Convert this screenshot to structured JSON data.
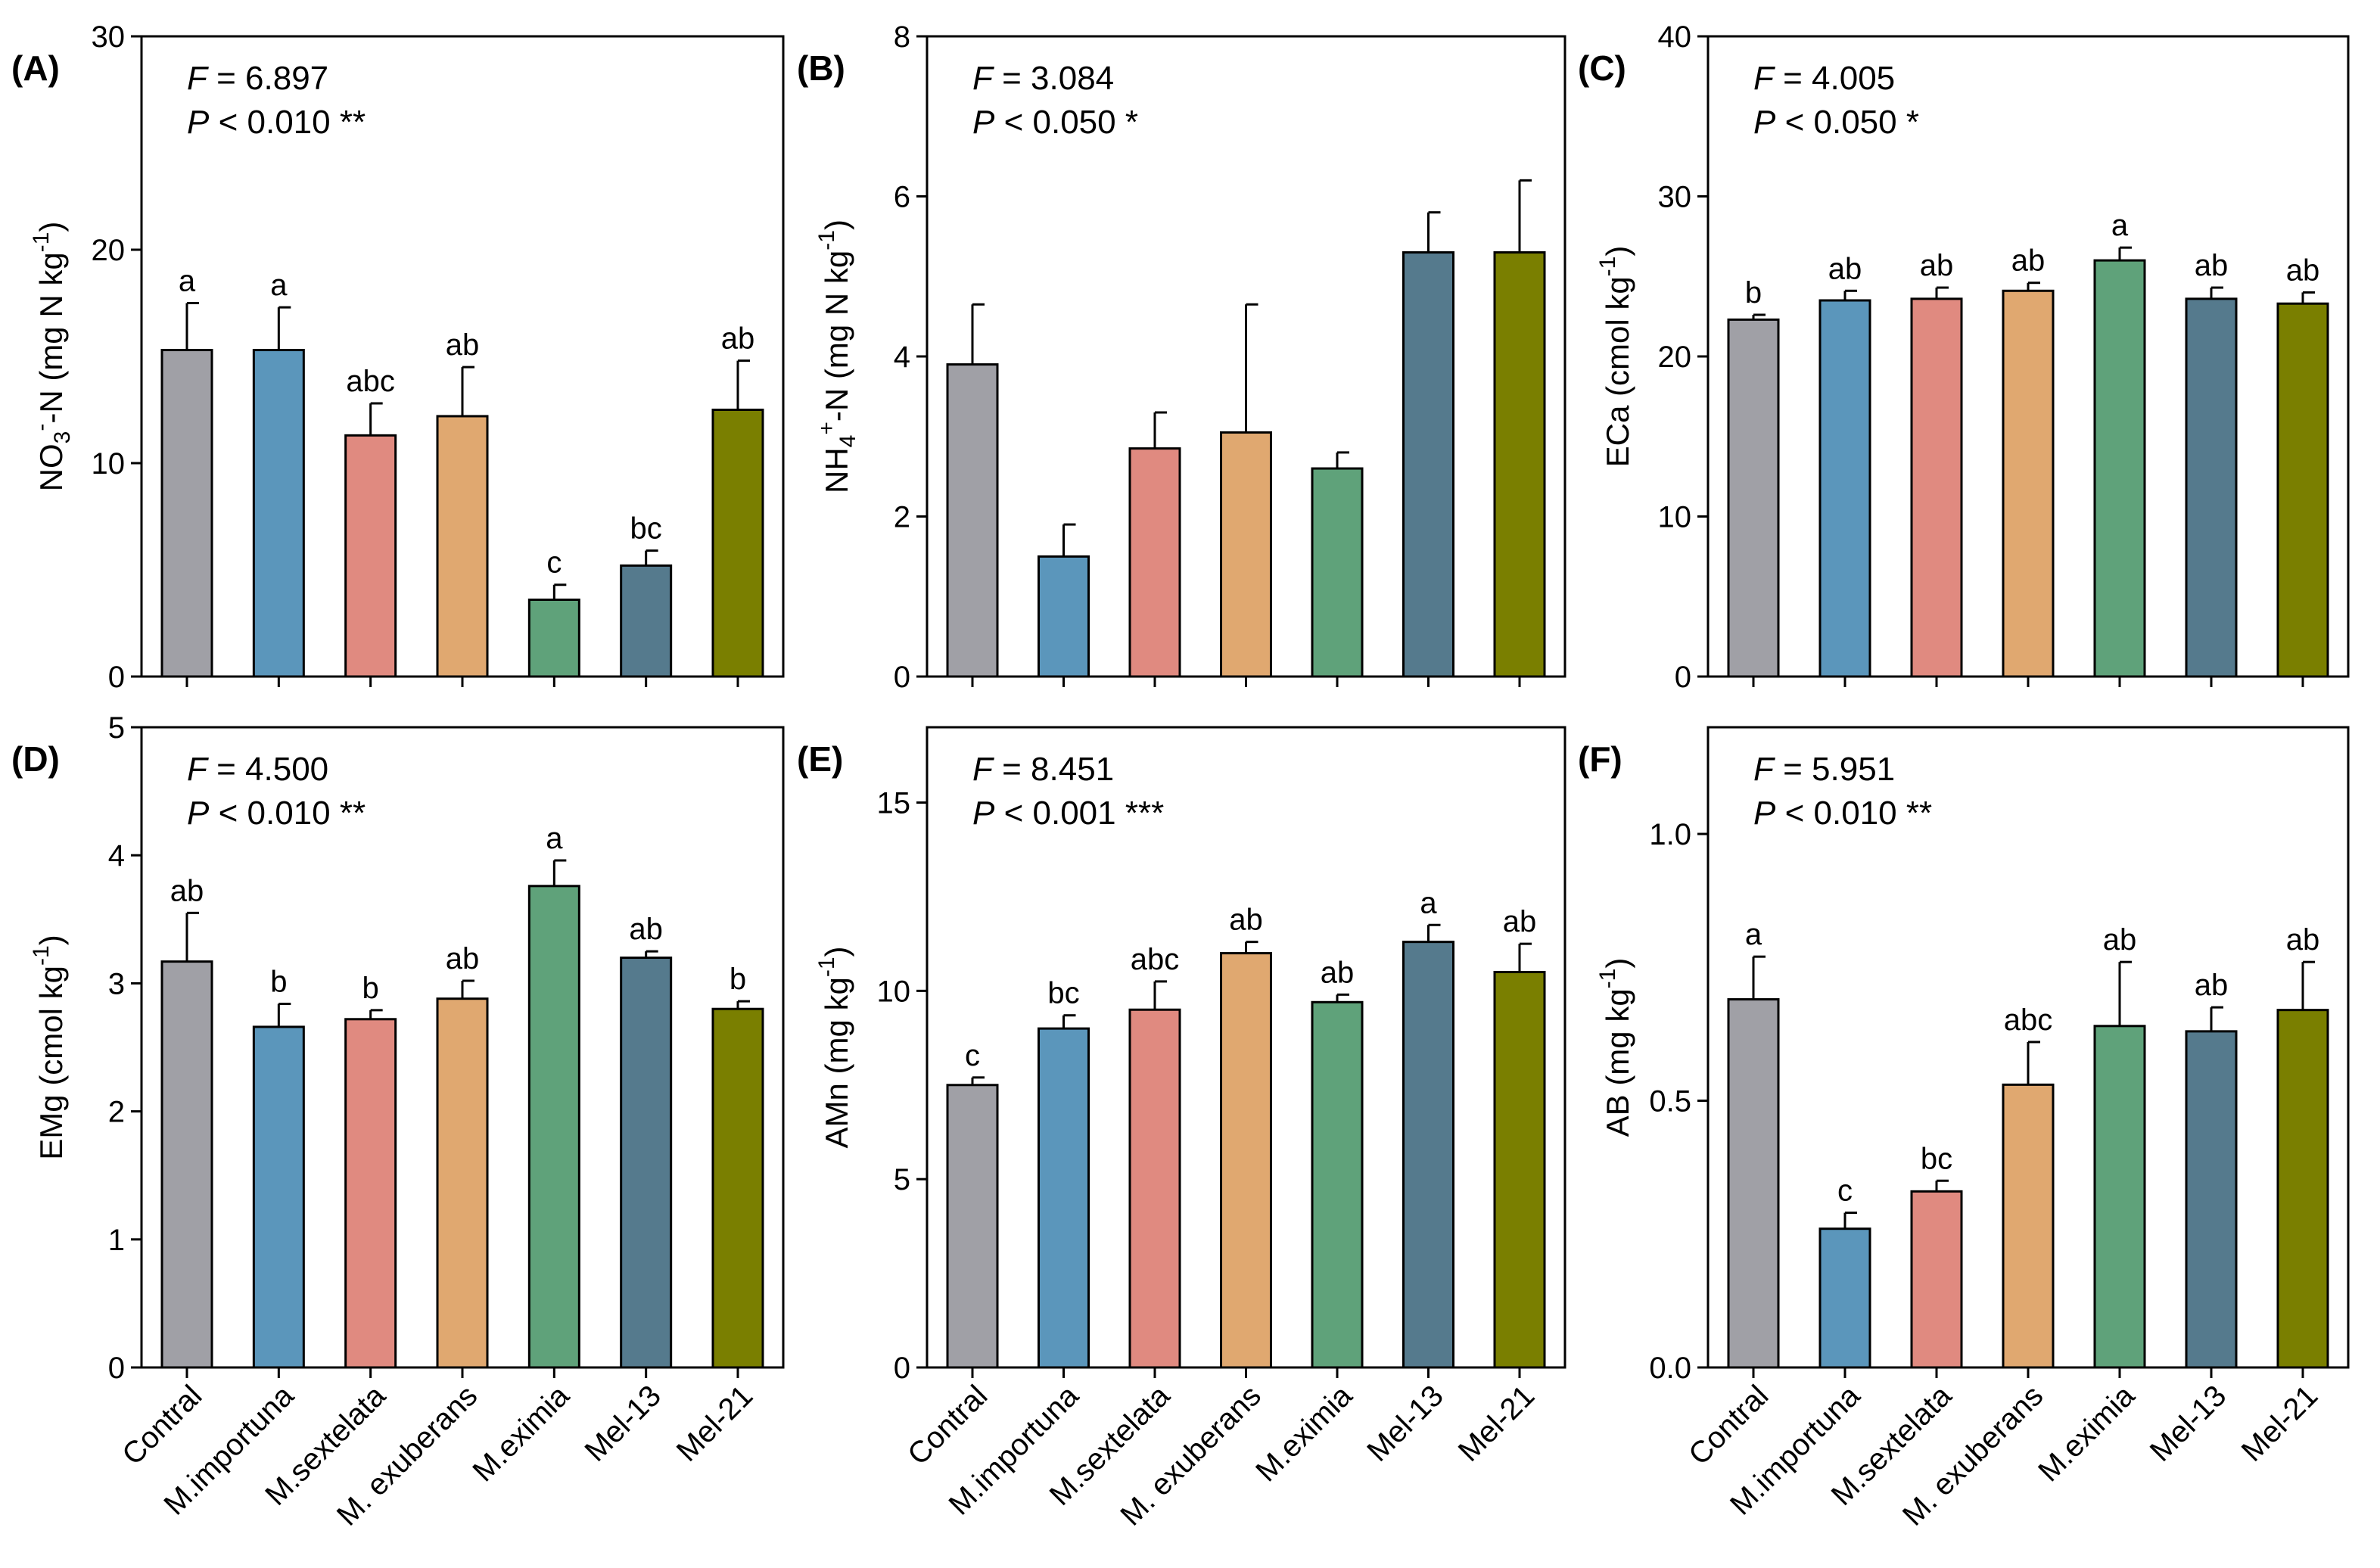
{
  "categories": [
    "Contral",
    "M.importuna",
    "M.sextelata",
    "M. exuberans",
    "M.eximia",
    "Mel-13",
    "Mel-21"
  ],
  "colors": [
    "#a0a0a6",
    "#5b96bb",
    "#e08a80",
    "#e0a870",
    "#5fa27a",
    "#557a8d",
    "#7a7f00"
  ],
  "chart_data": [
    {
      "type": "bar",
      "panel": "(A)",
      "ylabel": "NO3−-N (mg N kg−1)",
      "ylabel_parts": {
        "pre": "NO",
        "sub": "3",
        "sup": "-",
        "mid": "-N (mg N kg",
        "sup2": "-1",
        "post": ")"
      },
      "ylim": [
        0,
        30
      ],
      "yticks": [
        0,
        10,
        20,
        30
      ],
      "ytick_labels": [
        "0",
        "10",
        "20",
        "30"
      ],
      "stat": {
        "F_label": "F",
        "F_value": " = 6.897",
        "P_label": "P",
        "P_value": " < 0.010 **"
      },
      "values": [
        15.3,
        15.3,
        11.3,
        12.2,
        3.6,
        5.2,
        12.5
      ],
      "errors": [
        2.2,
        2.0,
        1.5,
        2.3,
        0.7,
        0.7,
        2.3
      ],
      "letters": [
        "a",
        "a",
        "abc",
        "ab",
        "c",
        "bc",
        "ab"
      ]
    },
    {
      "type": "bar",
      "panel": "(B)",
      "ylabel": "NH4+-N (mg N kg−1)",
      "ylabel_parts": {
        "pre": "NH",
        "sub": "4",
        "sup": "+",
        "mid": "-N (mg N kg",
        "sup2": "-1",
        "post": ")"
      },
      "ylim": [
        0,
        8
      ],
      "yticks": [
        0,
        2,
        4,
        6,
        8
      ],
      "ytick_labels": [
        "0",
        "2",
        "4",
        "6",
        "8"
      ],
      "stat": {
        "F_label": "F",
        "F_value": " = 3.084",
        "P_label": "P",
        "P_value": " < 0.050 *"
      },
      "values": [
        3.9,
        1.5,
        2.85,
        3.05,
        2.6,
        5.3,
        5.3
      ],
      "errors": [
        0.75,
        0.4,
        0.45,
        1.6,
        0.2,
        0.5,
        0.9
      ],
      "letters": [
        "",
        "",
        "",
        "",
        "",
        "",
        ""
      ]
    },
    {
      "type": "bar",
      "panel": "(C)",
      "ylabel": "ECa (cmol kg−1)",
      "ylabel_parts": {
        "pre": "ECa (cmol kg",
        "sub": "",
        "sup": "-1",
        "mid": ")",
        "sup2": "",
        "post": ""
      },
      "ylim": [
        0,
        40
      ],
      "yticks": [
        0,
        10,
        20,
        30,
        40
      ],
      "ytick_labels": [
        "0",
        "10",
        "20",
        "30",
        "40"
      ],
      "stat": {
        "F_label": "F",
        "F_value": " = 4.005",
        "P_label": "P",
        "P_value": " < 0.050 *"
      },
      "values": [
        22.3,
        23.5,
        23.6,
        24.1,
        26.0,
        23.6,
        23.3
      ],
      "errors": [
        0.3,
        0.6,
        0.7,
        0.5,
        0.8,
        0.7,
        0.7
      ],
      "letters": [
        "b",
        "ab",
        "ab",
        "ab",
        "a",
        "ab",
        "ab"
      ]
    },
    {
      "type": "bar",
      "panel": "(D)",
      "ylabel": "EMg (cmol kg−1)",
      "ylabel_parts": {
        "pre": "EMg (cmol kg",
        "sub": "",
        "sup": "-1",
        "mid": ")",
        "sup2": "",
        "post": ""
      },
      "ylim": [
        0,
        5
      ],
      "yticks": [
        0,
        1,
        2,
        3,
        4,
        5
      ],
      "ytick_labels": [
        "0",
        "1",
        "2",
        "3",
        "4",
        "5"
      ],
      "stat": {
        "F_label": "F",
        "F_value": " = 4.500",
        "P_label": "P",
        "P_value": " < 0.010 **"
      },
      "values": [
        3.17,
        2.66,
        2.72,
        2.88,
        3.76,
        3.2,
        2.8
      ],
      "errors": [
        0.38,
        0.18,
        0.07,
        0.14,
        0.2,
        0.05,
        0.06
      ],
      "letters": [
        "ab",
        "b",
        "b",
        "ab",
        "a",
        "ab",
        "b"
      ]
    },
    {
      "type": "bar",
      "panel": "(E)",
      "ylabel": "AMn (mg kg−1)",
      "ylabel_parts": {
        "pre": "AMn (mg kg",
        "sub": "",
        "sup": "-1",
        "mid": ")",
        "sup2": "",
        "post": ""
      },
      "ylim": [
        0,
        17
      ],
      "yticks": [
        0,
        5,
        10,
        15
      ],
      "ytick_labels": [
        "0",
        "5",
        "10",
        "15"
      ],
      "stat": {
        "F_label": "F",
        "F_value": " = 8.451",
        "P_label": "P",
        "P_value": " < 0.001 ***"
      },
      "values": [
        7.5,
        9.0,
        9.5,
        11.0,
        9.7,
        11.3,
        10.5
      ],
      "errors": [
        0.2,
        0.35,
        0.75,
        0.3,
        0.2,
        0.45,
        0.75
      ],
      "letters": [
        "c",
        "bc",
        "abc",
        "ab",
        "ab",
        "a",
        "ab"
      ]
    },
    {
      "type": "bar",
      "panel": "(F)",
      "ylabel": "AB (mg kg−1)",
      "ylabel_parts": {
        "pre": "AB (mg kg",
        "sub": "",
        "sup": "-1",
        "mid": ")",
        "sup2": "",
        "post": ""
      },
      "ylim": [
        0,
        1.2
      ],
      "yticks": [
        0,
        0.5,
        1.0
      ],
      "ytick_labels": [
        "0.0",
        "0.5",
        "1.0"
      ],
      "stat": {
        "F_label": "F",
        "F_value": " = 5.951",
        "P_label": "P",
        "P_value": " < 0.010 **"
      },
      "values": [
        0.69,
        0.26,
        0.33,
        0.53,
        0.64,
        0.63,
        0.67
      ],
      "errors": [
        0.08,
        0.03,
        0.02,
        0.08,
        0.12,
        0.045,
        0.09
      ],
      "letters": [
        "a",
        "c",
        "bc",
        "abc",
        "ab",
        "ab",
        "ab"
      ]
    }
  ]
}
